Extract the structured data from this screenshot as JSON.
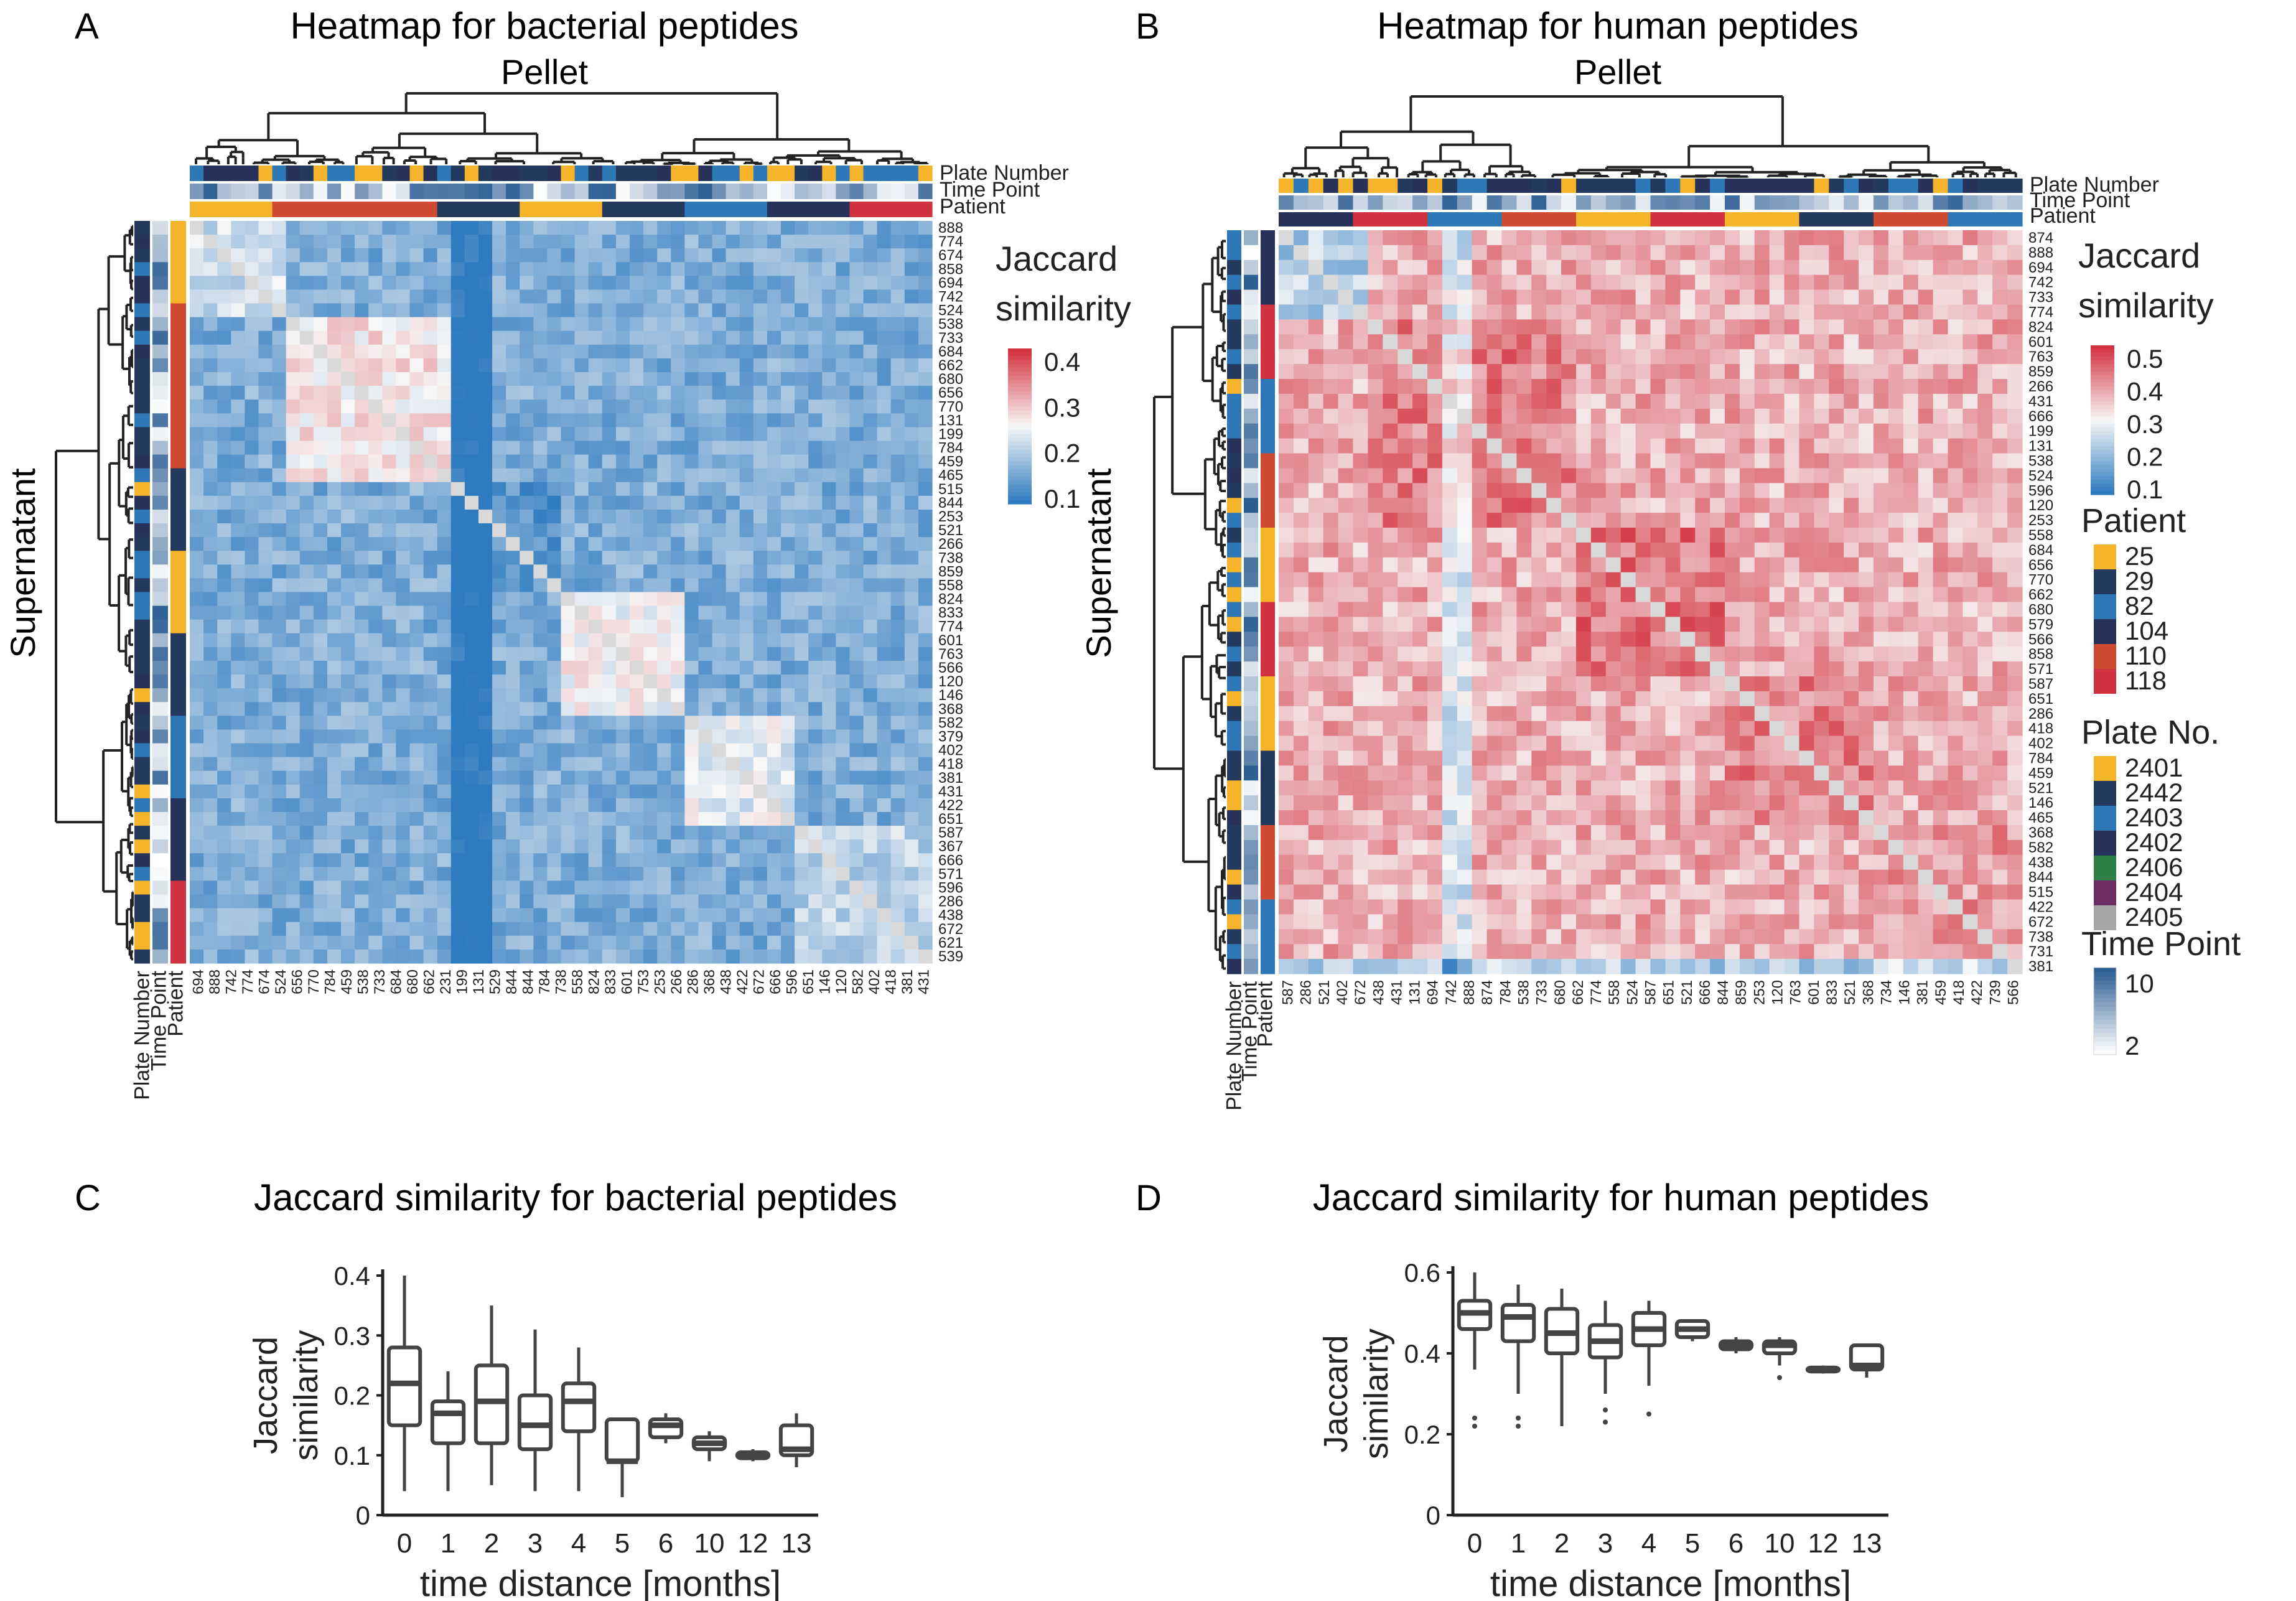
{
  "panels": {
    "A": {
      "letter": "A",
      "title": "Heatmap for bacterial peptides",
      "top_label": "Pellet",
      "side_label": "Supernatant",
      "annotation_tracks": [
        "Plate Number",
        "Time Point",
        "Patient"
      ],
      "legend_title": [
        "Jaccard",
        "similarity"
      ],
      "legend_ticks": [
        "0.4",
        "0.3",
        "0.2",
        "0.1"
      ],
      "row_labels": [
        "888",
        "774",
        "674",
        "858",
        "694",
        "742",
        "524",
        "538",
        "733",
        "684",
        "662",
        "680",
        "656",
        "770",
        "131",
        "199",
        "784",
        "459",
        "465",
        "515",
        "844",
        "253",
        "521",
        "266",
        "738",
        "859",
        "558",
        "824",
        "833",
        "774",
        "601",
        "763",
        "566",
        "120",
        "146",
        "368",
        "582",
        "379",
        "402",
        "418",
        "381",
        "431",
        "422",
        "651",
        "587",
        "367",
        "666",
        "571",
        "596",
        "286",
        "438",
        "672",
        "621",
        "539"
      ],
      "col_labels": [
        "694",
        "888",
        "742",
        "774",
        "674",
        "524",
        "656",
        "770",
        "784",
        "459",
        "538",
        "733",
        "684",
        "680",
        "662",
        "231",
        "199",
        "131",
        "529",
        "844",
        "844",
        "784",
        "738",
        "558",
        "824",
        "833",
        "601",
        "753",
        "253",
        "266",
        "286",
        "368",
        "438",
        "422",
        "672",
        "666",
        "596",
        "651",
        "146",
        "120",
        "582",
        "402",
        "418",
        "381",
        "431"
      ]
    },
    "B": {
      "letter": "B",
      "title": "Heatmap for human peptides",
      "top_label": "Pellet",
      "side_label": "Supernatant",
      "annotation_tracks": [
        "Plate Number",
        "Time Point",
        "Patient"
      ],
      "legend_title": [
        "Jaccard",
        "similarity"
      ],
      "legend_ticks": [
        "0.5",
        "0.4",
        "0.3",
        "0.2",
        "0.1"
      ],
      "row_labels": [
        "874",
        "888",
        "694",
        "742",
        "733",
        "774",
        "824",
        "601",
        "763",
        "859",
        "266",
        "431",
        "666",
        "199",
        "131",
        "538",
        "524",
        "596",
        "120",
        "253",
        "558",
        "684",
        "656",
        "770",
        "662",
        "680",
        "579",
        "566",
        "858",
        "571",
        "587",
        "651",
        "286",
        "418",
        "402",
        "784",
        "459",
        "521",
        "146",
        "465",
        "368",
        "582",
        "438",
        "844",
        "515",
        "422",
        "672",
        "738",
        "731",
        "381"
      ],
      "col_labels": [
        "587",
        "286",
        "521",
        "402",
        "672",
        "438",
        "431",
        "131",
        "694",
        "742",
        "888",
        "874",
        "784",
        "538",
        "733",
        "680",
        "662",
        "774",
        "558",
        "524",
        "587",
        "651",
        "521",
        "666",
        "844",
        "859",
        "253",
        "120",
        "763",
        "601",
        "833",
        "521",
        "368",
        "734",
        "146",
        "381",
        "459",
        "418",
        "422",
        "739",
        "566"
      ],
      "patient_legend": {
        "title": "Patient",
        "items": [
          "25",
          "29",
          "82",
          "104",
          "110",
          "118"
        ]
      },
      "plate_legend": {
        "title": "Plate No.",
        "items": [
          "2401",
          "2442",
          "2403",
          "2402",
          "2406",
          "2404",
          "2405"
        ]
      },
      "time_legend": {
        "title": "Time Point",
        "items": [
          "10",
          "2"
        ]
      }
    },
    "C": {
      "letter": "C",
      "title": "Jaccard similarity for bacterial peptides"
    },
    "D": {
      "letter": "D",
      "title": "Jaccard similarity for human peptides"
    }
  },
  "colors": {
    "heat_low": "#2f7bc0",
    "heat_mid": "#f7f7f7",
    "heat_high": "#d3323f",
    "patient": [
      "#f5b429",
      "#233a5e",
      "#2e78b7",
      "#263259",
      "#cf4a31",
      "#d0333f"
    ],
    "plate": [
      "#f5b429",
      "#233a5e",
      "#2e78b7",
      "#263259",
      "#2e7f48",
      "#6d2f63",
      "#a6a6a6"
    ],
    "time_high": "#2c5d93",
    "time_low": "#ffffff",
    "box_stroke": "#444444",
    "dendrogram": "#222222"
  },
  "chart_data": [
    {
      "panel": "C",
      "type": "box",
      "title": "Jaccard similarity for bacterial peptides",
      "xlabel": "time distance [months]",
      "ylabel": "Jaccard similarity",
      "ylim": [
        0,
        0.4
      ],
      "yticks": [
        "0",
        "0.1",
        "0.2",
        "0.3",
        "0.4"
      ],
      "categories": [
        "0",
        "1",
        "2",
        "3",
        "4",
        "5",
        "6",
        "10",
        "12",
        "13"
      ],
      "boxes": [
        {
          "min": 0.04,
          "q1": 0.15,
          "median": 0.22,
          "q3": 0.28,
          "max": 0.4
        },
        {
          "min": 0.04,
          "q1": 0.12,
          "median": 0.17,
          "q3": 0.19,
          "max": 0.24
        },
        {
          "min": 0.05,
          "q1": 0.12,
          "median": 0.19,
          "q3": 0.25,
          "max": 0.35
        },
        {
          "min": 0.04,
          "q1": 0.11,
          "median": 0.15,
          "q3": 0.2,
          "max": 0.31
        },
        {
          "min": 0.04,
          "q1": 0.14,
          "median": 0.19,
          "q3": 0.22,
          "max": 0.28
        },
        {
          "min": 0.03,
          "q1": 0.09,
          "median": 0.09,
          "q3": 0.16,
          "max": 0.16
        },
        {
          "min": 0.12,
          "q1": 0.13,
          "median": 0.15,
          "q3": 0.16,
          "max": 0.17
        },
        {
          "min": 0.09,
          "q1": 0.11,
          "median": 0.12,
          "q3": 0.13,
          "max": 0.14
        },
        {
          "min": 0.09,
          "q1": 0.095,
          "median": 0.1,
          "q3": 0.105,
          "max": 0.11
        },
        {
          "min": 0.08,
          "q1": 0.1,
          "median": 0.11,
          "q3": 0.15,
          "max": 0.17
        }
      ]
    },
    {
      "panel": "D",
      "type": "box",
      "title": "Jaccard similarity for human peptides",
      "xlabel": "time distance [months]",
      "ylabel": "Jaccard similarity",
      "ylim": [
        0,
        0.6
      ],
      "yticks": [
        "0",
        "0.2",
        "0.4",
        "0.6"
      ],
      "categories": [
        "0",
        "1",
        "2",
        "3",
        "4",
        "5",
        "6",
        "10",
        "12",
        "13"
      ],
      "boxes": [
        {
          "min": 0.36,
          "q1": 0.46,
          "median": 0.5,
          "q3": 0.53,
          "max": 0.6,
          "outliers": [
            0.22,
            0.24
          ]
        },
        {
          "min": 0.3,
          "q1": 0.43,
          "median": 0.49,
          "q3": 0.52,
          "max": 0.57,
          "outliers": [
            0.22,
            0.24
          ]
        },
        {
          "min": 0.22,
          "q1": 0.4,
          "median": 0.45,
          "q3": 0.51,
          "max": 0.56
        },
        {
          "min": 0.3,
          "q1": 0.39,
          "median": 0.43,
          "q3": 0.47,
          "max": 0.53,
          "outliers": [
            0.23,
            0.26
          ]
        },
        {
          "min": 0.32,
          "q1": 0.42,
          "median": 0.46,
          "q3": 0.5,
          "max": 0.53,
          "outliers": [
            0.25
          ]
        },
        {
          "min": 0.43,
          "q1": 0.44,
          "median": 0.46,
          "q3": 0.48,
          "max": 0.48
        },
        {
          "min": 0.4,
          "q1": 0.41,
          "median": 0.42,
          "q3": 0.43,
          "max": 0.44
        },
        {
          "min": 0.37,
          "q1": 0.4,
          "median": 0.42,
          "q3": 0.43,
          "max": 0.44,
          "outliers": [
            0.34
          ]
        },
        {
          "min": 0.35,
          "q1": 0.355,
          "median": 0.36,
          "q3": 0.365,
          "max": 0.37
        },
        {
          "min": 0.34,
          "q1": 0.36,
          "median": 0.37,
          "q3": 0.42,
          "max": 0.42
        }
      ]
    }
  ]
}
